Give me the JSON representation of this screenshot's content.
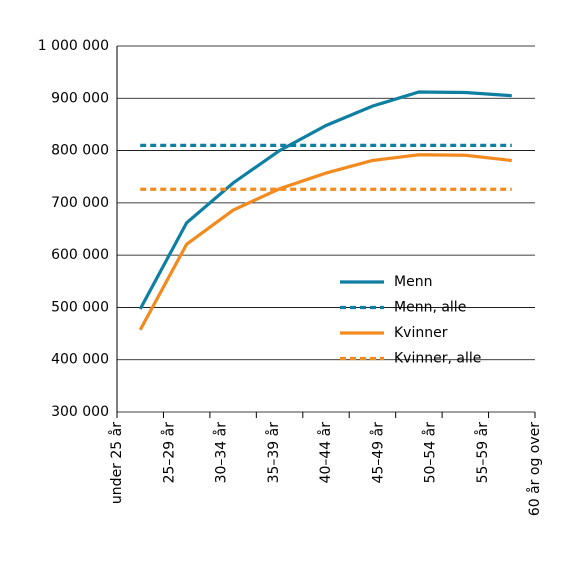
{
  "chart_data": {
    "type": "line",
    "categories": [
      "under 25 år",
      "25–29 år",
      "30–34 år",
      "35–39 år",
      "40–44 år",
      "45–49 år",
      "50–54 år",
      "55–59 år",
      "60 år og over"
    ],
    "series": [
      {
        "name": "Menn",
        "color": "#0e7fa3",
        "dashed": false,
        "values": [
          497000,
          662000,
          738000,
          800000,
          848000,
          885000,
          912000,
          911000,
          905000
        ]
      },
      {
        "name": "Menn, alle",
        "color": "#0e7fa3",
        "dashed": true,
        "values": [
          810000,
          810000,
          810000,
          810000,
          810000,
          810000,
          810000,
          810000,
          810000
        ]
      },
      {
        "name": "Kvinner",
        "color": "#f28a1e",
        "dashed": false,
        "values": [
          457000,
          621000,
          686000,
          727000,
          757000,
          781000,
          792000,
          791000,
          781000
        ]
      },
      {
        "name": "Kvinner, alle",
        "color": "#f28a1e",
        "dashed": true,
        "values": [
          726000,
          726000,
          726000,
          726000,
          726000,
          726000,
          726000,
          726000,
          726000
        ]
      }
    ],
    "ylim": [
      300000,
      1000000
    ],
    "yticks": [
      {
        "value": 300000,
        "label": "300 000"
      },
      {
        "value": 400000,
        "label": "400 000"
      },
      {
        "value": 500000,
        "label": "500 000"
      },
      {
        "value": 600000,
        "label": "600 000"
      },
      {
        "value": 700000,
        "label": "700 000"
      },
      {
        "value": 800000,
        "label": "800 000"
      },
      {
        "value": 900000,
        "label": "900 000"
      },
      {
        "value": 1000000,
        "label": "1 000 000"
      }
    ],
    "grid": true,
    "legend": "lower right"
  }
}
